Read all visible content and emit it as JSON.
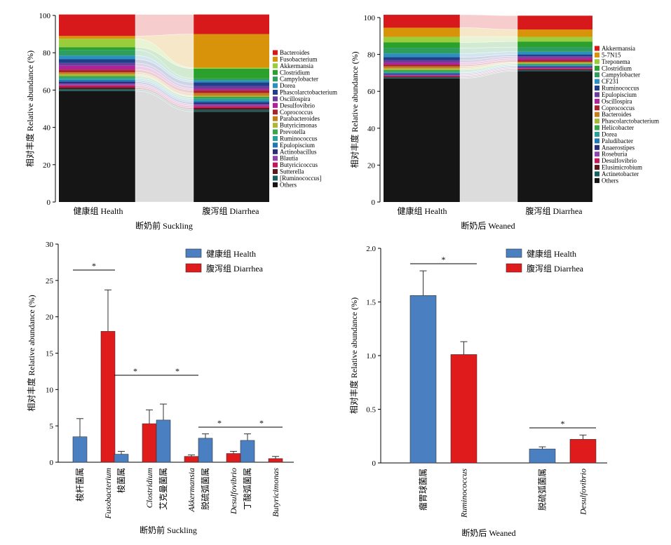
{
  "chart_data": [
    {
      "type": "area",
      "subtype": "stacked-100",
      "ylabel": "相对丰度 Relative abundance (%)",
      "xlabel": "断奶前 Suckling",
      "ylim": [
        0,
        100
      ],
      "yticks": [
        0,
        20,
        40,
        60,
        80,
        100
      ],
      "categories": [
        "健康组 Health",
        "腹泻组 Diarrhea"
      ],
      "legend_position": "right",
      "series": [
        {
          "name": "Bacteroides",
          "color": "#d7191c",
          "values": [
            11.5,
            10.5
          ]
        },
        {
          "name": "Fusobacterium",
          "color": "#d8930b",
          "values": [
            1.5,
            18
          ]
        },
        {
          "name": "Akkermansia",
          "color": "#9acd3c",
          "values": [
            4.5,
            0.5
          ]
        },
        {
          "name": "Clostridium",
          "color": "#2ca02c",
          "values": [
            1.5,
            5.3
          ]
        },
        {
          "name": "Campylobacter",
          "color": "#2e9e5e",
          "values": [
            3,
            1
          ]
        },
        {
          "name": "Dorea",
          "color": "#2d8fc0",
          "values": [
            2,
            1
          ]
        },
        {
          "name": "Phascolarctobacterium",
          "color": "#1f3f8a",
          "values": [
            2,
            2
          ]
        },
        {
          "name": "Oscillospira",
          "color": "#6a3d9a",
          "values": [
            1.5,
            1.5
          ]
        },
        {
          "name": "Desulfovibrio",
          "color": "#b0229a",
          "values": [
            2,
            0.8
          ]
        },
        {
          "name": "Coprococcus",
          "color": "#a8232e",
          "values": [
            1.5,
            1.5
          ]
        },
        {
          "name": "Parabacteroides",
          "color": "#c47f1a",
          "values": [
            1,
            1.5
          ]
        },
        {
          "name": "Butyricimonas",
          "color": "#aab83a",
          "values": [
            1,
            0.5
          ]
        },
        {
          "name": "Prevotella",
          "color": "#3aa54a",
          "values": [
            1,
            1
          ]
        },
        {
          "name": "Ruminococcus",
          "color": "#2aa198",
          "values": [
            1,
            1
          ]
        },
        {
          "name": "Epulopiscium",
          "color": "#1f78b4",
          "values": [
            1,
            1
          ]
        },
        {
          "name": "Actinobacillus",
          "color": "#2b2f7a",
          "values": [
            1,
            1
          ]
        },
        {
          "name": "Blautia",
          "color": "#8e44ad",
          "values": [
            1,
            1
          ]
        },
        {
          "name": "Butyricicoccus",
          "color": "#c2185b",
          "values": [
            1,
            1
          ]
        },
        {
          "name": "Sutterella",
          "color": "#5a1a1a",
          "values": [
            1,
            1
          ]
        },
        {
          "name": "[Ruminococcus]",
          "color": "#1a5f5f",
          "values": [
            1,
            1
          ]
        },
        {
          "name": "Others",
          "color": "#151515",
          "values": [
            59.5,
            48.4
          ]
        }
      ]
    },
    {
      "type": "area",
      "subtype": "stacked-100",
      "ylabel": "相对丰度 Relative abundance (%)",
      "xlabel": "断奶后 Weaned",
      "ylim": [
        0,
        100
      ],
      "yticks": [
        0,
        20,
        40,
        60,
        80,
        100
      ],
      "categories": [
        "健康组 Health",
        "腹泻组 Diarrhea"
      ],
      "legend_position": "right",
      "series": [
        {
          "name": "Akkermansia",
          "color": "#d7191c",
          "values": [
            7,
            7.5
          ]
        },
        {
          "name": "5-7N15",
          "color": "#d8930b",
          "values": [
            5,
            4
          ]
        },
        {
          "name": "Treponema",
          "color": "#9acd3c",
          "values": [
            3,
            2.5
          ]
        },
        {
          "name": "Clostridium",
          "color": "#2ca02c",
          "values": [
            3,
            3
          ]
        },
        {
          "name": "Campylobacter",
          "color": "#2e9e5e",
          "values": [
            3,
            2.5
          ]
        },
        {
          "name": "CF231",
          "color": "#2d8fc0",
          "values": [
            2,
            1.5
          ]
        },
        {
          "name": "Ruminococcus",
          "color": "#1f3f8a",
          "values": [
            1.5,
            1
          ]
        },
        {
          "name": "Epulopiscium",
          "color": "#6a3d9a",
          "values": [
            1.5,
            1
          ]
        },
        {
          "name": "Oscillospira",
          "color": "#b0229a",
          "values": [
            1,
            1
          ]
        },
        {
          "name": "Coprococcus",
          "color": "#a8232e",
          "values": [
            1,
            1
          ]
        },
        {
          "name": "Bacteroides",
          "color": "#c47f1a",
          "values": [
            1,
            0.5
          ]
        },
        {
          "name": "Phascolarctobacterium",
          "color": "#aab83a",
          "values": [
            1,
            0.5
          ]
        },
        {
          "name": "Helicobacter",
          "color": "#3aa54a",
          "values": [
            1,
            0.5
          ]
        },
        {
          "name": "Dorea",
          "color": "#2aa198",
          "values": [
            0.5,
            0.5
          ]
        },
        {
          "name": "Paludibacter",
          "color": "#1f78b4",
          "values": [
            0.5,
            0.5
          ]
        },
        {
          "name": "Anaerostipes",
          "color": "#2b2f7a",
          "values": [
            0.5,
            0.5
          ]
        },
        {
          "name": "Roseburia",
          "color": "#8e44ad",
          "values": [
            0.5,
            0.5
          ]
        },
        {
          "name": "Desulfovibrio",
          "color": "#c2185b",
          "values": [
            0.5,
            0.5
          ]
        },
        {
          "name": "Elusimicrobium",
          "color": "#5a1a1a",
          "values": [
            0.5,
            0.5
          ]
        },
        {
          "name": "Actinetobacter",
          "color": "#1a5f5f",
          "values": [
            0.5,
            0.5
          ]
        },
        {
          "name": "Others",
          "color": "#151515",
          "values": [
            67,
            71
          ]
        }
      ]
    },
    {
      "type": "bar",
      "ylabel": "相对丰度 Relative abundance (%)",
      "xlabel": "断奶前 Suckling",
      "ylim": [
        0,
        30
      ],
      "yticks": [
        0,
        5,
        10,
        15,
        20,
        25,
        30
      ],
      "legend_position": "top-right",
      "categories": [
        {
          "cn": "梭杆菌属",
          "latin": "Fusobacterium"
        },
        {
          "cn": "梭菌属",
          "latin": "Clostridium"
        },
        {
          "cn": "艾克曼菌属",
          "latin": "Akkermansia"
        },
        {
          "cn": "脱硫弧菌属",
          "latin": "Desulfovibrio"
        },
        {
          "cn": "丁酸弧菌属",
          "latin": "Butyricimonas"
        }
      ],
      "series": [
        {
          "name": "健康组 Health",
          "color": "#4a7fc1",
          "values": [
            3.5,
            1.1,
            5.8,
            3.3,
            3.0
          ],
          "errors": [
            2.5,
            0.4,
            2.2,
            0.6,
            0.9
          ]
        },
        {
          "name": "腹泻组 Diarrhea",
          "color": "#e01b1b",
          "values": [
            18,
            5.3,
            0.8,
            1.2,
            0.5
          ],
          "errors": [
            5.7,
            1.9,
            0.2,
            0.3,
            0.3
          ]
        }
      ],
      "significance": [
        "*",
        "*",
        "*",
        "*",
        "*"
      ]
    },
    {
      "type": "bar",
      "ylabel": "相对丰度 Relative abundance (%)",
      "xlabel": "断奶后 Weaned",
      "ylim": [
        0,
        2.0
      ],
      "yticks": [
        "0",
        "0.5",
        "1.0",
        "1.5",
        "2.0"
      ],
      "legend_position": "top-right",
      "categories": [
        {
          "cn": "瘤胃球菌属",
          "latin": "Ruminococcus"
        },
        {
          "cn": "脱硫弧菌属",
          "latin": "Desulfovibrio"
        }
      ],
      "series": [
        {
          "name": "健康组 Health",
          "color": "#4a7fc1",
          "values": [
            1.56,
            0.13
          ],
          "errors": [
            0.23,
            0.02
          ]
        },
        {
          "name": "腹泻组 Diarrhea",
          "color": "#e01b1b",
          "values": [
            1.01,
            0.22
          ],
          "errors": [
            0.12,
            0.04
          ]
        }
      ],
      "significance": [
        "*",
        "*"
      ]
    }
  ]
}
